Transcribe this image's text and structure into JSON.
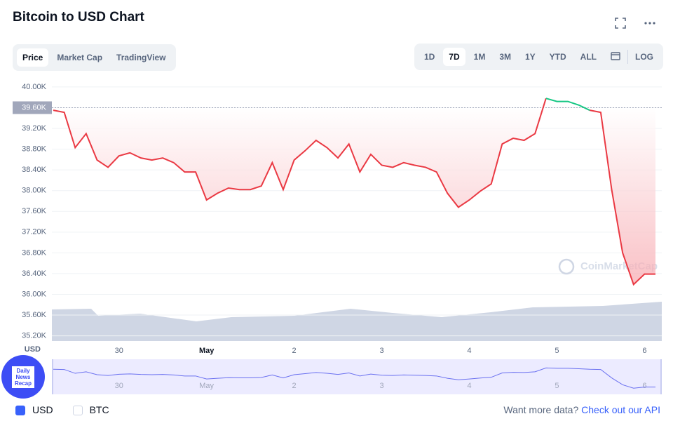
{
  "tabs": [
    "Price",
    "Market Cap",
    "TradingView"
  ],
  "active_tab": 0,
  "ranges": [
    "1D",
    "7D",
    "1M",
    "3M",
    "1Y",
    "YTD",
    "ALL",
    "LOG"
  ],
  "active_range": 1,
  "watermark": "CoinMarketCap",
  "badge": "Daily News Recap",
  "currencies": [
    {
      "label": "USD",
      "checked": true
    },
    {
      "label": "BTC",
      "checked": false
    }
  ],
  "footer": {
    "text": "Want more data?",
    "link": "Check out our API"
  },
  "chart_data": {
    "type": "line",
    "title": "Bitcoin to USD Chart",
    "y_label": "USD",
    "categories": [
      null,
      null,
      null,
      null,
      null,
      null,
      "30",
      null,
      null,
      null,
      null,
      null,
      null,
      null,
      "May",
      null,
      null,
      null,
      null,
      null,
      null,
      null,
      "2",
      null,
      null,
      null,
      null,
      null,
      null,
      null,
      "3",
      null,
      null,
      null,
      null,
      null,
      null,
      null,
      "4",
      null,
      null,
      null,
      null,
      null,
      null,
      null,
      "5",
      null,
      null,
      null,
      null,
      null,
      null,
      null,
      "6",
      null
    ],
    "series": [
      {
        "name": "Price",
        "color": "#ea3943",
        "color_above": "#16c784",
        "values": [
          39550,
          39510,
          38830,
          39100,
          38590,
          38450,
          38670,
          38730,
          38630,
          38590,
          38630,
          38540,
          38360,
          38360,
          37820,
          37950,
          38050,
          38020,
          38020,
          38090,
          38540,
          38020,
          38590,
          38770,
          38970,
          38830,
          38630,
          38900,
          38360,
          38700,
          38490,
          38450,
          38540,
          38490,
          38450,
          38360,
          37950,
          37680,
          37820,
          37990,
          38130,
          38900,
          39010,
          38970,
          39100,
          39780,
          39720,
          39720,
          39650,
          39550,
          39510,
          38020,
          36800,
          36190,
          36390,
          36390
        ]
      }
    ],
    "reference_line": {
      "value": 39600,
      "label": "39.60K"
    },
    "ylim": [
      35100,
      40080
    ],
    "yticks": [
      {
        "value": 35200,
        "label": "35.20K"
      },
      {
        "value": 35600,
        "label": "35.60K"
      },
      {
        "value": 36000,
        "label": "36.00K"
      },
      {
        "value": 36400,
        "label": "36.40K"
      },
      {
        "value": 36800,
        "label": "36.80K"
      },
      {
        "value": 37200,
        "label": "37.20K"
      },
      {
        "value": 37600,
        "label": "37.60K"
      },
      {
        "value": 38000,
        "label": "38.00K"
      },
      {
        "value": 38400,
        "label": "38.40K"
      },
      {
        "value": 38800,
        "label": "38.80K"
      },
      {
        "value": 39200,
        "label": "39.20K"
      },
      {
        "value": 39600,
        "label": "39.60K"
      },
      {
        "value": 40000,
        "label": "40.00K"
      }
    ],
    "grid": true
  }
}
